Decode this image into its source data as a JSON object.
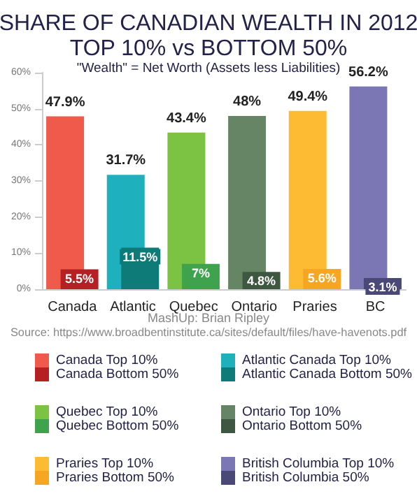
{
  "chart_data": {
    "type": "bar",
    "title": "SHARE OF CANADIAN WEALTH IN 2012\nTOP 10% vs BOTTOM 50%",
    "subtitle": "\"Wealth\" = Net Worth (Assets less Liabilities)",
    "categories": [
      "Canada",
      "Atlantic",
      "Quebec",
      "Ontario",
      "Praries",
      "BC"
    ],
    "series": [
      {
        "name": "Canada Top 10%",
        "color": "#f05a4a",
        "values": [
          47.9,
          null,
          null,
          null,
          null,
          null
        ],
        "value_labels": [
          "47.9%",
          null,
          null,
          null,
          null,
          null
        ]
      },
      {
        "name": "Canada Bottom 50%",
        "color": "#b52025",
        "values": [
          5.5,
          null,
          null,
          null,
          null,
          null
        ],
        "value_labels": [
          "5.5%",
          null,
          null,
          null,
          null,
          null
        ]
      },
      {
        "name": "Atlantic Canada Top 10%",
        "color": "#1fb0be",
        "values": [
          null,
          31.7,
          null,
          null,
          null,
          null
        ],
        "value_labels": [
          null,
          "31.7%",
          null,
          null,
          null,
          null
        ]
      },
      {
        "name": "Atlantic Canada Bottom 50%",
        "color": "#0e7b78",
        "values": [
          null,
          11.5,
          null,
          null,
          null,
          null
        ],
        "value_labels": [
          null,
          "11.5%",
          null,
          null,
          null,
          null
        ]
      },
      {
        "name": "Quebec Top 10%",
        "color": "#7cc243",
        "values": [
          null,
          null,
          43.4,
          null,
          null,
          null
        ],
        "value_labels": [
          null,
          null,
          "43.4%",
          null,
          null,
          null
        ]
      },
      {
        "name": "Quebec Bottom 50%",
        "color": "#3fa34d",
        "values": [
          null,
          null,
          7,
          null,
          null,
          null
        ],
        "value_labels": [
          null,
          null,
          "7%",
          null,
          null,
          null
        ]
      },
      {
        "name": "Ontario Top 10%",
        "color": "#668565",
        "values": [
          null,
          null,
          null,
          48,
          null,
          null
        ],
        "value_labels": [
          null,
          null,
          null,
          "48%",
          null,
          null
        ]
      },
      {
        "name": "Ontario Bottom 50%",
        "color": "#3e5740",
        "values": [
          null,
          null,
          null,
          4.8,
          null,
          null
        ],
        "value_labels": [
          null,
          null,
          null,
          "4.8%",
          null,
          null
        ]
      },
      {
        "name": "Praries Top 10%",
        "color": "#fdbb34",
        "values": [
          null,
          null,
          null,
          null,
          49.4,
          null
        ],
        "value_labels": [
          null,
          null,
          null,
          null,
          "49.4%",
          null
        ]
      },
      {
        "name": "Praries Bottom 50%",
        "color": "#f6a623",
        "values": [
          null,
          null,
          null,
          null,
          5.6,
          null
        ],
        "value_labels": [
          null,
          null,
          null,
          null,
          "5.6%",
          null
        ]
      },
      {
        "name": "British Columbia Top 10%",
        "color": "#7b76b4",
        "values": [
          null,
          null,
          null,
          null,
          null,
          56.2
        ],
        "value_labels": [
          null,
          null,
          null,
          null,
          null,
          "56.2%"
        ]
      },
      {
        "name": "British Columbia 50%",
        "color": "#494877",
        "values": [
          null,
          null,
          null,
          null,
          null,
          3.1
        ],
        "value_labels": [
          null,
          null,
          null,
          null,
          null,
          "3.1%"
        ]
      }
    ],
    "ylim": [
      0,
      60
    ],
    "yticks": [
      {
        "value": 0,
        "label": "0%"
      },
      {
        "value": 10,
        "label": "10%"
      },
      {
        "value": 20,
        "label": "20%"
      },
      {
        "value": 30,
        "label": "30%"
      },
      {
        "value": 40,
        "label": "40%"
      },
      {
        "value": 50,
        "label": "50%"
      },
      {
        "value": 60,
        "label": "60%"
      }
    ],
    "grid": false,
    "legend": "bottom",
    "annotations": [
      "MashUp: Brian Ripley",
      "Source: https://www.broadbentinstitute.ca/sites/default/files/have-havenots.pdf"
    ]
  }
}
